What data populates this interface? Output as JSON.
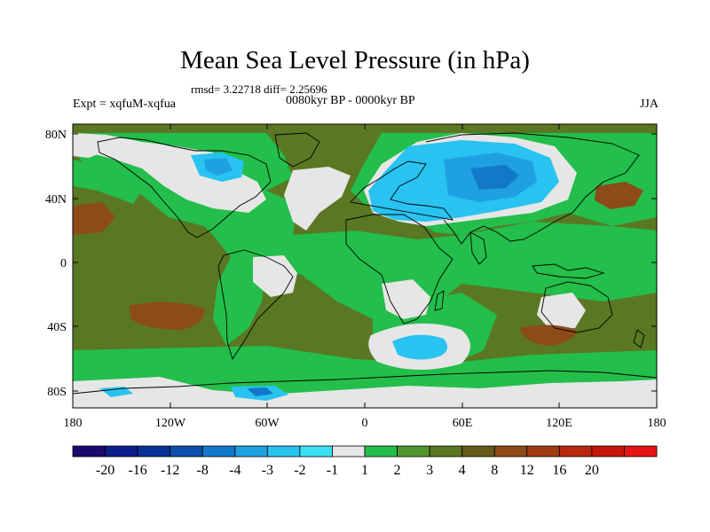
{
  "title": "Mean Sea Level Pressure (in hPa)",
  "stats": "rmsd= 3.22718 diff= 2.25696",
  "experiment": "Expt = xqfuM-xqfua",
  "period": "0080kyr BP - 0000kyr BP",
  "season": "JJA",
  "lat_labels": [
    "80N",
    "40N",
    "0",
    "40S",
    "80S"
  ],
  "lon_labels": [
    "180",
    "120W",
    "60W",
    "0",
    "60E",
    "120E",
    "180"
  ],
  "colorbar": {
    "colors": [
      "#1a0a6e",
      "#0a1e8c",
      "#0a3296",
      "#0a50aa",
      "#1478c8",
      "#1ea0e1",
      "#28c3f0",
      "#3ce1f5",
      "#e6e6e6",
      "#23be4b",
      "#50962d",
      "#5a7823",
      "#645a19",
      "#8c4b19",
      "#a03c14",
      "#b9280f",
      "#c8140a",
      "#e61414"
    ],
    "labels": [
      "-20",
      "-16",
      "-12",
      "-8",
      "-4",
      "-3",
      "-2",
      "-1",
      "1",
      "2",
      "3",
      "4",
      "8",
      "12",
      "16",
      "20"
    ]
  },
  "palette": {
    "ocean_base": "#5a7823",
    "moderate_positive": "#23be4b",
    "small_change": "#e6e6e6",
    "negative_light": "#28c3f0",
    "negative_mid": "#1ea0e1",
    "negative_strong": "#1478c8",
    "positive_high": "#8c4b19",
    "positive_higher": "#a03c14",
    "coastline": "#000000"
  }
}
